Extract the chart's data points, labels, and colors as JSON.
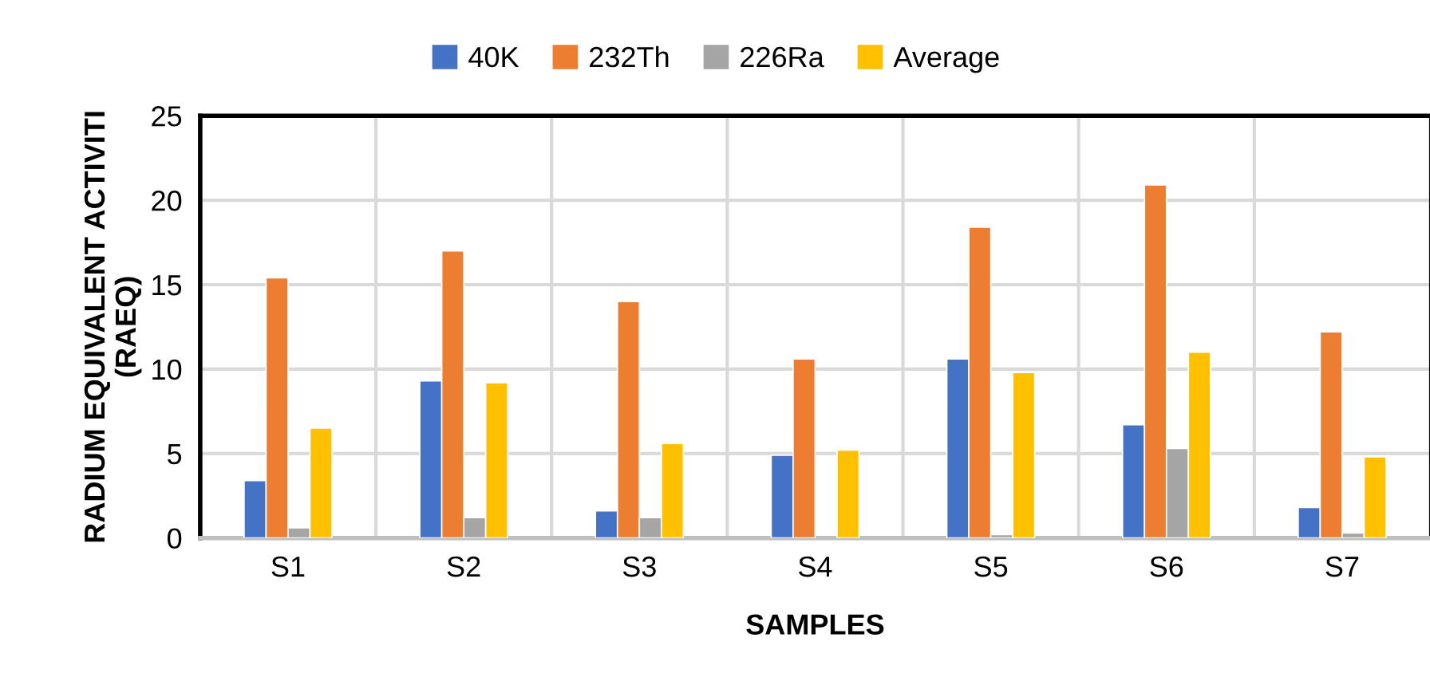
{
  "chart_data": {
    "type": "bar",
    "xlabel": "SAMPLES",
    "ylabel": "RADIUM EQUIVALENT ACTIVITI\n(RAEQ)",
    "categories": [
      "S1",
      "S2",
      "S3",
      "S4",
      "S5",
      "S6",
      "S7"
    ],
    "series": [
      {
        "name": "40K",
        "color": "#4472c4",
        "values": [
          3.4,
          9.3,
          1.6,
          4.9,
          10.6,
          6.7,
          1.8
        ]
      },
      {
        "name": "232Th",
        "color": "#ed7d31",
        "values": [
          15.4,
          17.0,
          14.0,
          10.6,
          18.4,
          20.9,
          12.2
        ]
      },
      {
        "name": "226Ra",
        "color": "#a5a5a5",
        "values": [
          0.6,
          1.2,
          1.2,
          null,
          0.2,
          5.3,
          0.3
        ]
      },
      {
        "name": "Average",
        "color": "#ffc000",
        "values": [
          6.5,
          9.2,
          5.6,
          5.2,
          9.8,
          11.0,
          4.8
        ]
      }
    ],
    "ylim": [
      0,
      25
    ],
    "yticks": [
      0,
      5,
      10,
      15,
      20,
      25
    ],
    "grid": true,
    "legend": "top"
  }
}
